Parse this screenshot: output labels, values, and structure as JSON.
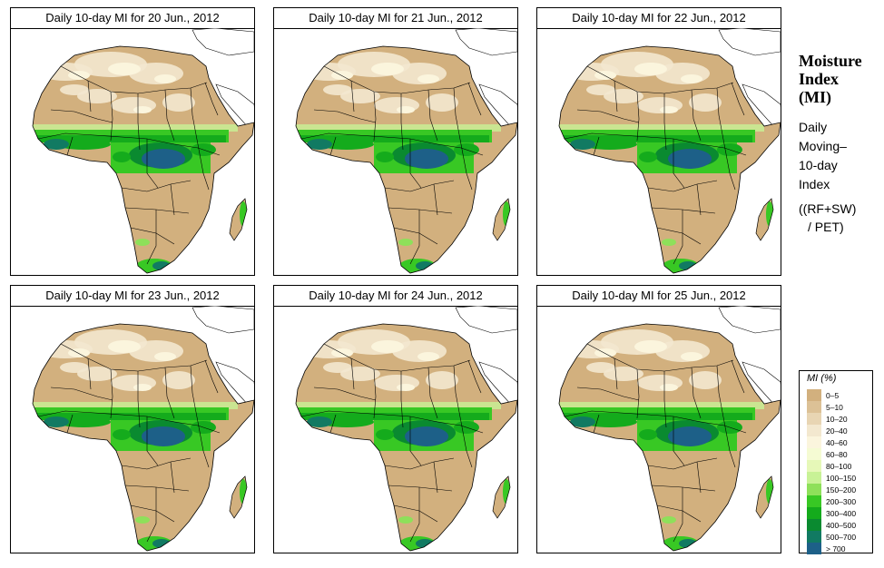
{
  "panels": [
    {
      "title": "Daily 10-day MI for  20 Jun., 2012"
    },
    {
      "title": "Daily 10-day MI for  21 Jun., 2012"
    },
    {
      "title": "Daily 10-day MI for  22 Jun., 2012"
    },
    {
      "title": "Daily 10-day MI for  23 Jun., 2012"
    },
    {
      "title": "Daily 10-day MI for  24 Jun., 2012"
    },
    {
      "title": "Daily 10-day MI for  25 Jun., 2012"
    }
  ],
  "side_title": [
    "Moisture",
    "Index",
    "(MI)"
  ],
  "side_subtitle": [
    "Daily",
    "Moving–",
    "10-day",
    "Index"
  ],
  "side_formula": [
    "((RF+SW)",
    "/ PET)"
  ],
  "legend": {
    "title": "MI (%)",
    "items": [
      {
        "label": "0–5",
        "color": "#d2b07e"
      },
      {
        "label": "5–10",
        "color": "#dcc196"
      },
      {
        "label": "10–20",
        "color": "#e8d5b3"
      },
      {
        "label": "20–40",
        "color": "#f3e8cf"
      },
      {
        "label": "40–60",
        "color": "#fbf5dd"
      },
      {
        "label": "60–80",
        "color": "#f5fbd3"
      },
      {
        "label": "80–100",
        "color": "#e6f8b8"
      },
      {
        "label": "100–150",
        "color": "#c8f296"
      },
      {
        "label": "150–200",
        "color": "#8ee05a"
      },
      {
        "label": "200–300",
        "color": "#38c824"
      },
      {
        "label": "300–400",
        "color": "#14ab1c"
      },
      {
        "label": "400–500",
        "color": "#0a8a30"
      },
      {
        "label": "500–700",
        "color": "#117a62"
      },
      {
        "label": "> 700",
        "color": "#1d6088"
      }
    ]
  }
}
